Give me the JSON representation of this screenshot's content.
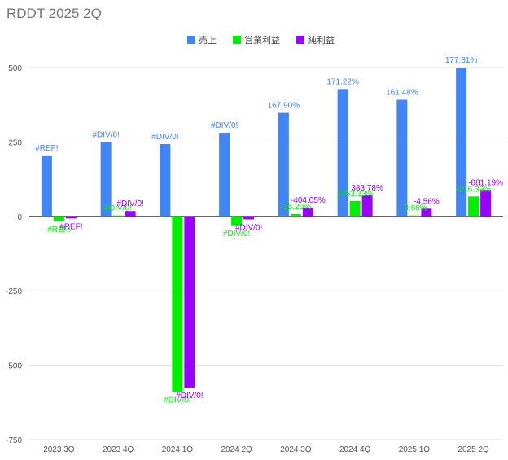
{
  "chart_data": {
    "type": "bar",
    "title": "RDDT 2025 2Q",
    "xlabel": "",
    "ylabel": "",
    "ylim": [
      -750,
      500
    ],
    "yticks": [
      500,
      250,
      0,
      -250,
      -500,
      -750
    ],
    "grid": true,
    "legend_position": "top",
    "categories": [
      "2023 3Q",
      "2023 4Q",
      "2024 1Q",
      "2024 2Q",
      "2024 3Q",
      "2024 4Q",
      "2025 1Q",
      "2025 2Q"
    ],
    "series": [
      {
        "name": "売上",
        "color": "#4285f4",
        "values": [
          205,
          250,
          243,
          281,
          348,
          428,
          392,
          500
        ],
        "labels": [
          "#REF!",
          "#DIV/0!",
          "#DIV/0!",
          "#DIV/0!",
          "167.90%",
          "171.22%",
          "161.48%",
          "177.81%"
        ]
      },
      {
        "name": "営業利益",
        "color": "#00ee00",
        "values": [
          -17,
          3,
          -590,
          -30,
          8,
          52,
          3,
          67
        ],
        "labels": [
          "#REF!",
          "#DIV/0!",
          "#DIV/0!",
          "#DIV/0!",
          "-35.20%",
          "1763.33%",
          "-0.66%",
          "-216.39%"
        ]
      },
      {
        "name": "純利益",
        "color": "#9900ff",
        "values": [
          -7,
          18,
          -575,
          -10,
          30,
          71,
          26,
          89
        ],
        "labels": [
          "#REF!",
          "#DIV/0!",
          "#DIV/0!",
          "#DIV/0!",
          "-404.05%",
          "383.78%",
          "-4.56%",
          "-881.19%"
        ]
      }
    ]
  }
}
